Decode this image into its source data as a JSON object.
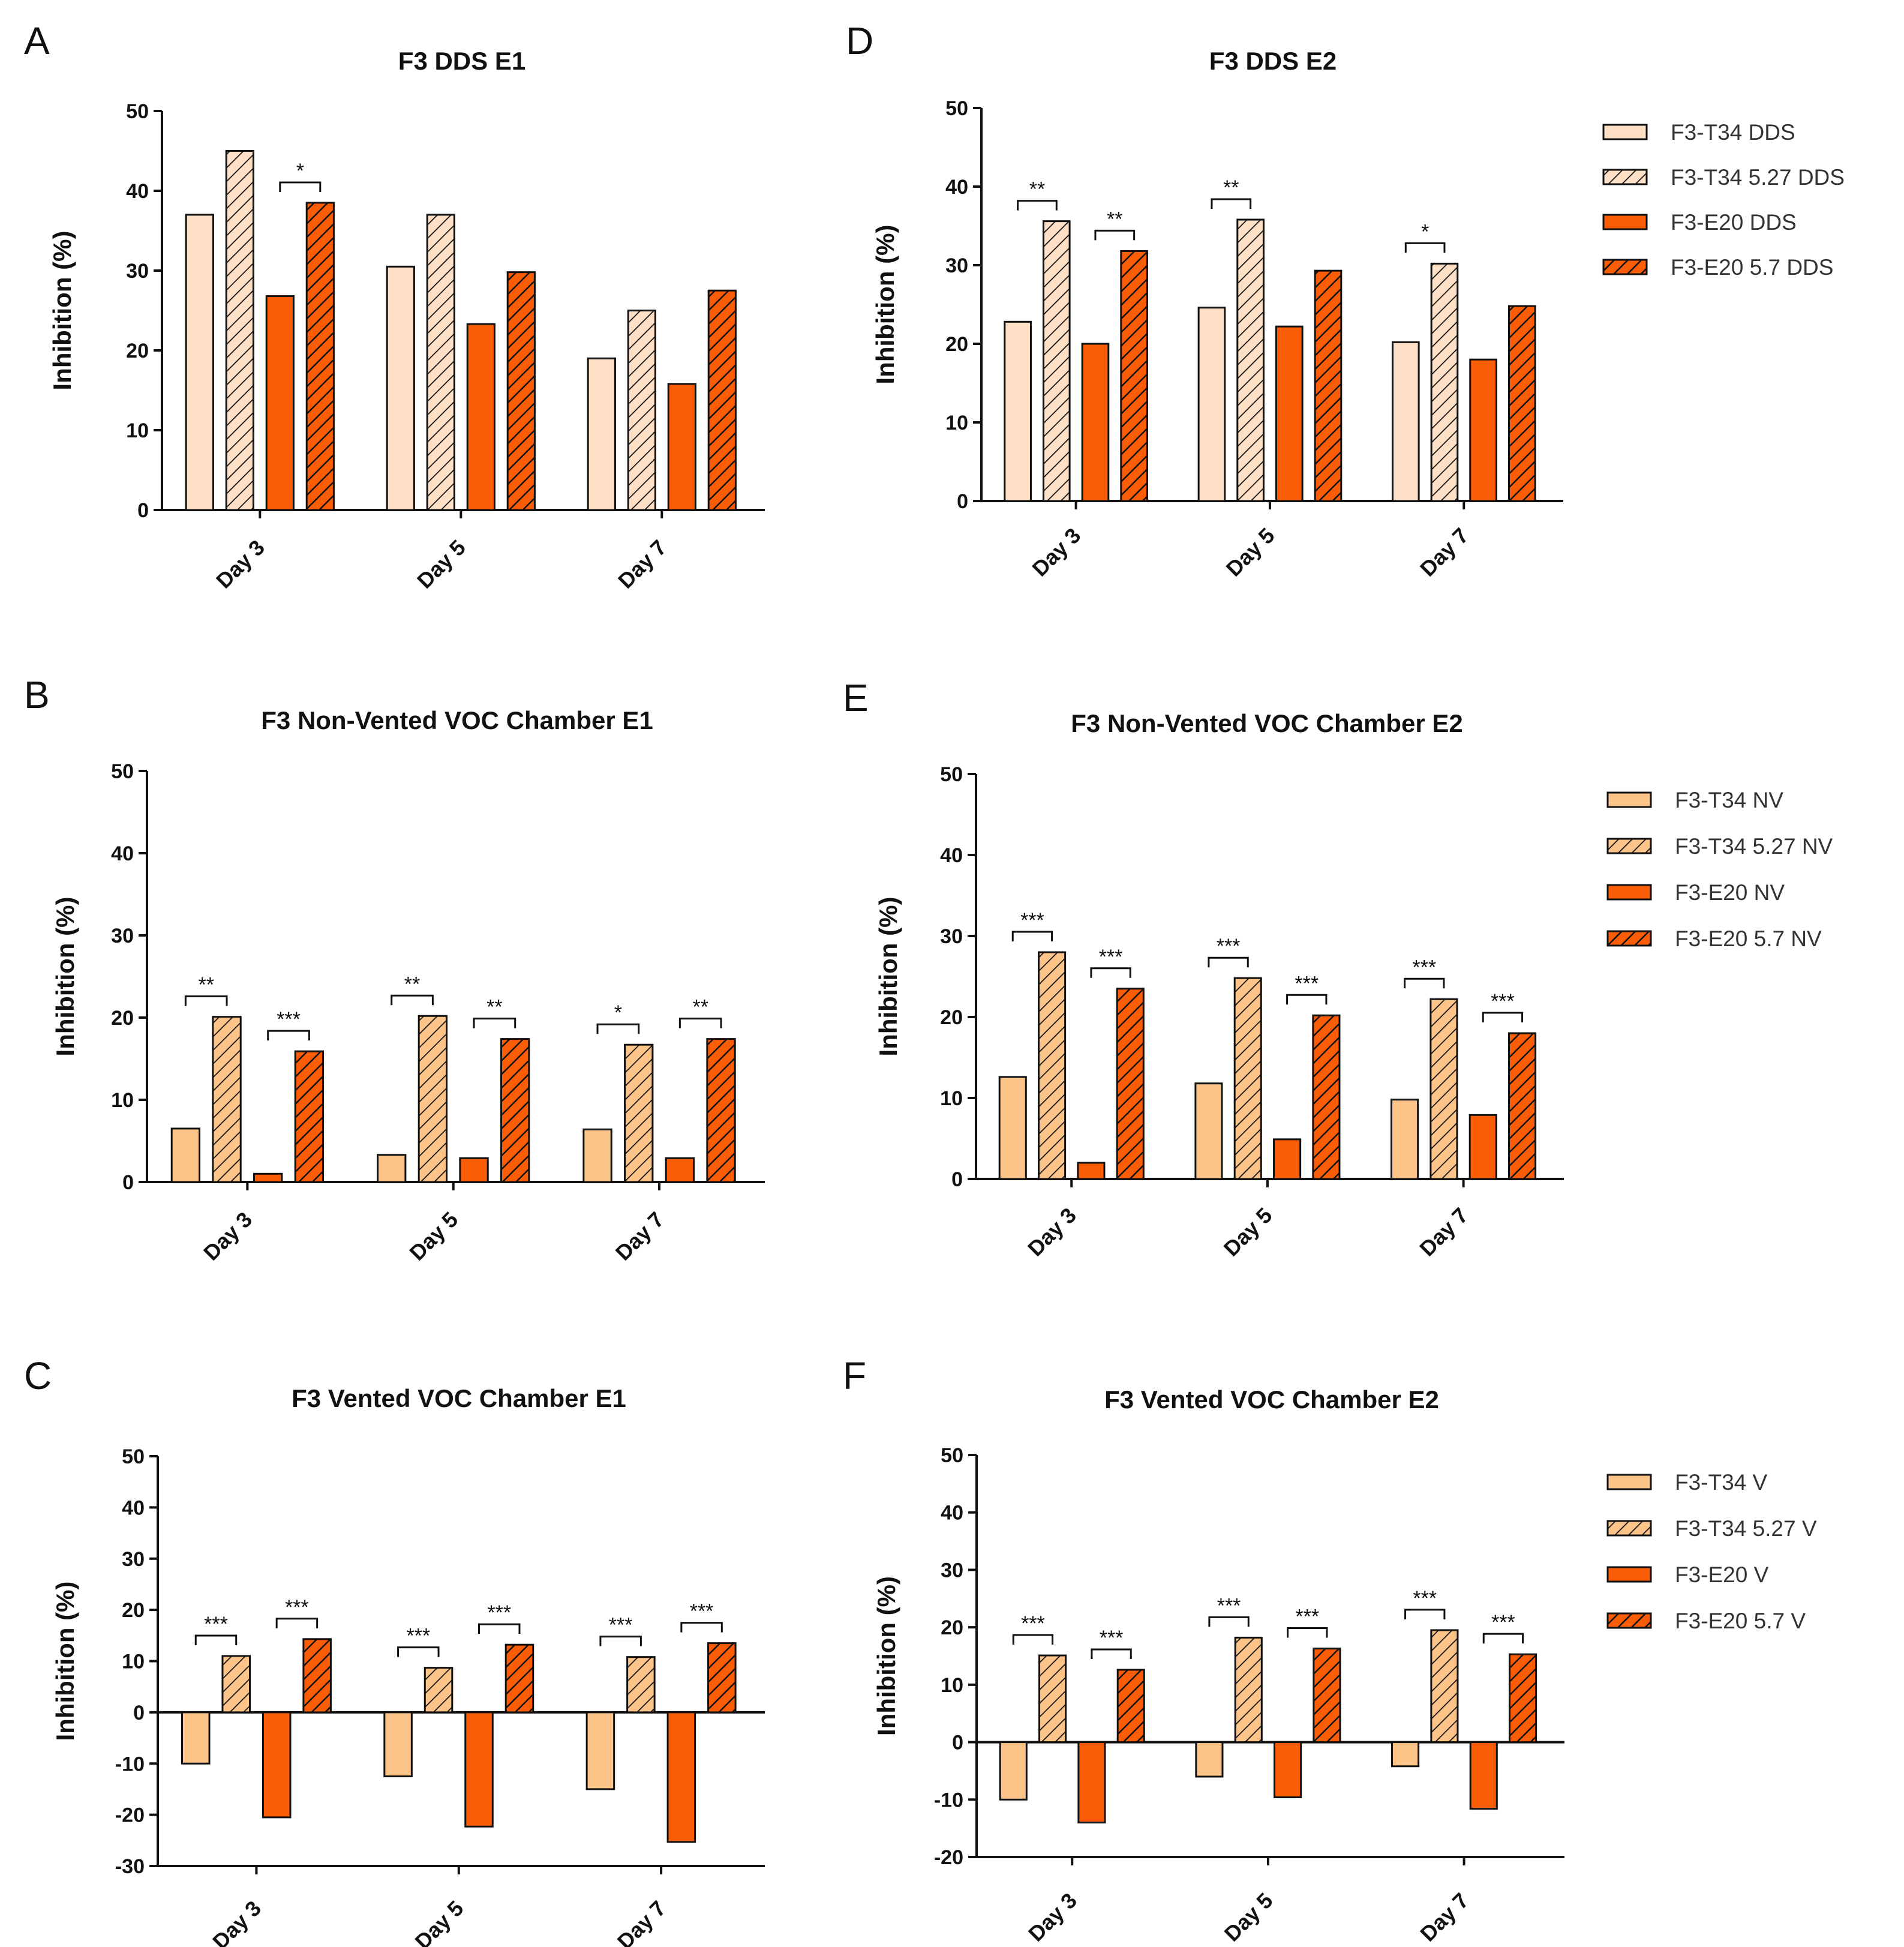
{
  "colors": {
    "t34_dds": "#fde0c6",
    "t34": "#fdc48a",
    "e20": "#fb5d06",
    "stroke": "#111111"
  },
  "chart_data": [
    {
      "id": "A",
      "type": "bar",
      "panel_label": "A",
      "title": "F3 DDS E1",
      "ylabel": "Inhibition (%)",
      "ylim": [
        0,
        50
      ],
      "yticks": [
        0,
        10,
        20,
        30,
        40,
        50
      ],
      "categories": [
        "Day 3",
        "Day 5",
        "Day 7"
      ],
      "series": [
        {
          "name": "F3-T34 DDS",
          "values": [
            37,
            30.5,
            19
          ]
        },
        {
          "name": "F3-T34 5.27 DDS",
          "values": [
            45,
            37,
            25
          ]
        },
        {
          "name": "F3-E20 DDS",
          "values": [
            26.8,
            23.3,
            15.8
          ]
        },
        {
          "name": "F3-E20 5.7 DDS",
          "values": [
            38.5,
            29.8,
            27.5
          ]
        }
      ],
      "significance": [
        {
          "category": "Day 3",
          "from": 2,
          "to": 3,
          "label": "*"
        }
      ]
    },
    {
      "id": "D",
      "type": "bar",
      "panel_label": "D",
      "title": "F3 DDS E2",
      "ylabel": "Inhibition (%)",
      "ylim": [
        0,
        50
      ],
      "yticks": [
        0,
        10,
        20,
        30,
        40,
        50
      ],
      "categories": [
        "Day 3",
        "Day 5",
        "Day 7"
      ],
      "series": [
        {
          "name": "F3-T34 DDS",
          "values": [
            22.8,
            24.6,
            20.2
          ]
        },
        {
          "name": "F3-T34 5.27 DDS",
          "values": [
            35.6,
            35.8,
            30.2
          ]
        },
        {
          "name": "F3-E20 DDS",
          "values": [
            20,
            22.2,
            18
          ]
        },
        {
          "name": "F3-E20 5.7 DDS",
          "values": [
            31.8,
            29.3,
            24.8
          ]
        }
      ],
      "significance": [
        {
          "category": "Day 3",
          "from": 0,
          "to": 1,
          "label": "**"
        },
        {
          "category": "Day 3",
          "from": 2,
          "to": 3,
          "label": "**"
        },
        {
          "category": "Day 5",
          "from": 0,
          "to": 1,
          "label": "**"
        },
        {
          "category": "Day 7",
          "from": 0,
          "to": 1,
          "label": "*"
        }
      ],
      "legend": [
        "F3-T34 DDS",
        "F3-T34 5.27 DDS",
        "F3-E20 DDS",
        "F3-E20 5.7 DDS"
      ]
    },
    {
      "id": "B",
      "type": "bar",
      "panel_label": "B",
      "title": "F3 Non-Vented VOC Chamber E1",
      "ylabel": "Inhibition (%)",
      "ylim": [
        0,
        50
      ],
      "yticks": [
        0,
        10,
        20,
        30,
        40,
        50
      ],
      "categories": [
        "Day 3",
        "Day 5",
        "Day 7"
      ],
      "series": [
        {
          "name": "F3-T34 NV",
          "values": [
            6.5,
            3.3,
            6.4
          ]
        },
        {
          "name": "F3-T34 5.27 NV",
          "values": [
            20.1,
            20.2,
            16.7
          ]
        },
        {
          "name": "F3-E20 NV",
          "values": [
            1,
            2.9,
            2.9
          ]
        },
        {
          "name": "F3-E20 5.7 NV",
          "values": [
            15.9,
            17.4,
            17.4
          ]
        }
      ],
      "significance": [
        {
          "category": "Day 3",
          "from": 0,
          "to": 1,
          "label": "**"
        },
        {
          "category": "Day 3",
          "from": 2,
          "to": 3,
          "label": "***"
        },
        {
          "category": "Day 5",
          "from": 0,
          "to": 1,
          "label": "**"
        },
        {
          "category": "Day 5",
          "from": 2,
          "to": 3,
          "label": "**"
        },
        {
          "category": "Day 7",
          "from": 0,
          "to": 1,
          "label": "*"
        },
        {
          "category": "Day 7",
          "from": 2,
          "to": 3,
          "label": "**"
        }
      ]
    },
    {
      "id": "E",
      "type": "bar",
      "panel_label": "E",
      "title": "F3 Non-Vented VOC Chamber E2",
      "ylabel": "Inhibition (%)",
      "ylim": [
        0,
        50
      ],
      "yticks": [
        0,
        10,
        20,
        30,
        40,
        50
      ],
      "categories": [
        "Day 3",
        "Day 5",
        "Day 7"
      ],
      "series": [
        {
          "name": "F3-T34 NV",
          "values": [
            12.6,
            11.8,
            9.8
          ]
        },
        {
          "name": "F3-T34 5.27 NV",
          "values": [
            28,
            24.8,
            22.2
          ]
        },
        {
          "name": "F3-E20 NV",
          "values": [
            2,
            4.9,
            7.9
          ]
        },
        {
          "name": "F3-E20 5.7 NV",
          "values": [
            23.5,
            20.2,
            18
          ]
        }
      ],
      "significance": [
        {
          "category": "Day 3",
          "from": 0,
          "to": 1,
          "label": "***"
        },
        {
          "category": "Day 3",
          "from": 2,
          "to": 3,
          "label": "***"
        },
        {
          "category": "Day 5",
          "from": 0,
          "to": 1,
          "label": "***"
        },
        {
          "category": "Day 5",
          "from": 2,
          "to": 3,
          "label": "***"
        },
        {
          "category": "Day 7",
          "from": 0,
          "to": 1,
          "label": "***"
        },
        {
          "category": "Day 7",
          "from": 2,
          "to": 3,
          "label": "***"
        }
      ],
      "legend": [
        "F3-T34 NV",
        "F3-T34 5.27 NV",
        "F3-E20 NV",
        "F3-E20 5.7 NV"
      ]
    },
    {
      "id": "C",
      "type": "bar",
      "panel_label": "C",
      "title": "F3 Vented VOC Chamber E1",
      "ylabel": "Inhibition (%)",
      "ylim": [
        -30,
        50
      ],
      "yticks": [
        -30,
        -20,
        -10,
        0,
        10,
        20,
        30,
        40,
        50
      ],
      "categories": [
        "Day 3",
        "Day 5",
        "Day 7"
      ],
      "series": [
        {
          "name": "F3-T34 V",
          "values": [
            -10,
            -12.5,
            -15
          ]
        },
        {
          "name": "F3-T34 5.27 V",
          "values": [
            11,
            8.7,
            10.8
          ]
        },
        {
          "name": "F3-E20 V",
          "values": [
            -20.5,
            -22.3,
            -25.3
          ]
        },
        {
          "name": "F3-E20 5.7 V",
          "values": [
            14.3,
            13.2,
            13.5
          ]
        }
      ],
      "significance": [
        {
          "category": "Day 3",
          "from": 0,
          "to": 1,
          "label": "***"
        },
        {
          "category": "Day 3",
          "from": 2,
          "to": 3,
          "label": "***"
        },
        {
          "category": "Day 5",
          "from": 0,
          "to": 1,
          "label": "***"
        },
        {
          "category": "Day 5",
          "from": 2,
          "to": 3,
          "label": "***"
        },
        {
          "category": "Day 7",
          "from": 0,
          "to": 1,
          "label": "***"
        },
        {
          "category": "Day 7",
          "from": 2,
          "to": 3,
          "label": "***"
        }
      ]
    },
    {
      "id": "F",
      "type": "bar",
      "panel_label": "F",
      "title": "F3 Vented VOC Chamber E2",
      "ylabel": "Inhibition (%)",
      "ylim": [
        -20,
        50
      ],
      "yticks": [
        -20,
        -10,
        0,
        10,
        20,
        30,
        40,
        50
      ],
      "categories": [
        "Day 3",
        "Day 5",
        "Day 7"
      ],
      "series": [
        {
          "name": "F3-T34 V",
          "values": [
            -10,
            -6,
            -4.2
          ]
        },
        {
          "name": "F3-T34 5.27 V",
          "values": [
            15.1,
            18.2,
            19.5
          ]
        },
        {
          "name": "F3-E20 V",
          "values": [
            -14,
            -9.6,
            -11.6
          ]
        },
        {
          "name": "F3-E20 5.7 V",
          "values": [
            12.6,
            16.3,
            15.3
          ]
        }
      ],
      "significance": [
        {
          "category": "Day 3",
          "from": 0,
          "to": 1,
          "label": "***"
        },
        {
          "category": "Day 3",
          "from": 2,
          "to": 3,
          "label": "***"
        },
        {
          "category": "Day 5",
          "from": 0,
          "to": 1,
          "label": "***"
        },
        {
          "category": "Day 5",
          "from": 2,
          "to": 3,
          "label": "***"
        },
        {
          "category": "Day 7",
          "from": 0,
          "to": 1,
          "label": "***"
        },
        {
          "category": "Day 7",
          "from": 2,
          "to": 3,
          "label": "***"
        }
      ],
      "legend": [
        "F3-T34 V",
        "F3-T34 5.27 V",
        "F3-E20 V",
        "F3-E20 5.7 V"
      ]
    }
  ]
}
